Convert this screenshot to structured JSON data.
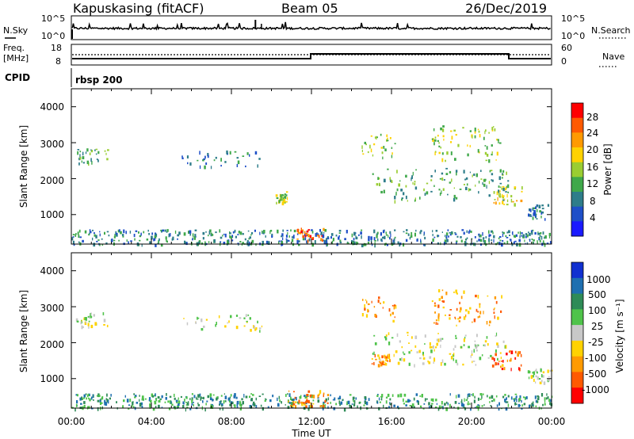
{
  "header": {
    "station": "Kapuskasing (fitACF)",
    "beam": "Beam 05",
    "date": "26/Dec/2019"
  },
  "top_panels": {
    "nsky_label": "N.Sky",
    "nsky_ticks": [
      "10^5",
      "10^0"
    ],
    "nsearch_label": "N.Search",
    "nsearch_ticks": [
      "10^5",
      "10^0"
    ],
    "freq_label": "Freq.",
    "freq_unit": "[MHz]",
    "freq_ticks": [
      "18",
      "8"
    ],
    "nave_label": "Nave",
    "nave_ticks": [
      "60",
      "0"
    ],
    "cpid_label": "CPID",
    "cpid_value": "rbsp 200"
  },
  "colors": {
    "power_scale": [
      "#1a1aff",
      "#1e4fc8",
      "#2e7d8a",
      "#3fa84a",
      "#9acd32",
      "#ffd200",
      "#ff9a00",
      "#ff5a00",
      "#ff0000"
    ],
    "velocity_scale": [
      "#1030d0",
      "#1e6fb0",
      "#2e8b57",
      "#4fc34a",
      "#c8c8c8",
      "#ffd200",
      "#ff9a00",
      "#ff5a00",
      "#ff0000"
    ]
  },
  "chart_data": [
    {
      "type": "heatmap",
      "panel": "power",
      "ylabel": "Slant Range [km]",
      "ylim": [
        180,
        4500
      ],
      "yticks": [
        "4000",
        "3000",
        "2000",
        "1000"
      ],
      "colorbar_label": "Power [dB]",
      "colorbar_ticks": [
        "28",
        "24",
        "20",
        "16",
        "12",
        "8",
        "4"
      ],
      "regions": [
        {
          "t0": 0.0,
          "t1": 24.0,
          "r0": 180,
          "r1": 600,
          "value": 8
        },
        {
          "t0": 11.2,
          "t1": 12.6,
          "r0": 300,
          "r1": 650,
          "value": 28
        },
        {
          "t0": 0.2,
          "t1": 1.8,
          "r0": 2450,
          "r1": 2850,
          "value": 10
        },
        {
          "t0": 5.5,
          "t1": 9.5,
          "r0": 2350,
          "r1": 2800,
          "value": 8
        },
        {
          "t0": 10.2,
          "t1": 10.8,
          "r0": 1350,
          "r1": 1650,
          "value": 14
        },
        {
          "t0": 14.5,
          "t1": 16.2,
          "r0": 2600,
          "r1": 3300,
          "value": 16
        },
        {
          "t0": 15.0,
          "t1": 21.8,
          "r0": 1400,
          "r1": 2300,
          "value": 10
        },
        {
          "t0": 18.0,
          "t1": 21.5,
          "r0": 2500,
          "r1": 3500,
          "value": 14
        },
        {
          "t0": 21.0,
          "t1": 22.5,
          "r0": 1300,
          "r1": 1800,
          "value": 18
        },
        {
          "t0": 22.8,
          "t1": 24.0,
          "r0": 900,
          "r1": 1300,
          "value": 8
        }
      ]
    },
    {
      "type": "heatmap",
      "panel": "velocity",
      "xlabel": "Time UT",
      "ylabel": "Slant Range [km]",
      "ylim": [
        180,
        4500
      ],
      "xticks": [
        "00:00",
        "04:00",
        "08:00",
        "12:00",
        "16:00",
        "20:00",
        "00:00"
      ],
      "yticks": [
        "4000",
        "3000",
        "2000",
        "1000"
      ],
      "colorbar_label": "Velocity [m s⁻¹]",
      "colorbar_ticks": [
        "1000",
        "500",
        "100",
        "25",
        "-25",
        "-100",
        "-500",
        "-1000"
      ],
      "regions": [
        {
          "t0": 0.0,
          "t1": 24.0,
          "r0": 180,
          "r1": 600,
          "value": 100
        },
        {
          "t0": 10.8,
          "t1": 12.8,
          "r0": 250,
          "r1": 700,
          "value": -100
        },
        {
          "t0": 0.2,
          "t1": 1.8,
          "r0": 2450,
          "r1": 2850,
          "value": 0
        },
        {
          "t0": 5.5,
          "t1": 9.5,
          "r0": 2350,
          "r1": 2800,
          "value": 0
        },
        {
          "t0": 14.5,
          "t1": 16.2,
          "r0": 2600,
          "r1": 3300,
          "value": -100
        },
        {
          "t0": 15.0,
          "t1": 16.0,
          "r0": 1400,
          "r1": 1700,
          "value": -100
        },
        {
          "t0": 15.0,
          "t1": 21.8,
          "r0": 1400,
          "r1": 2300,
          "value": 0
        },
        {
          "t0": 18.0,
          "t1": 21.5,
          "r0": 2500,
          "r1": 3500,
          "value": -100
        },
        {
          "t0": 21.0,
          "t1": 22.5,
          "r0": 1300,
          "r1": 1800,
          "value": -500
        },
        {
          "t0": 22.8,
          "t1": 24.0,
          "r0": 900,
          "r1": 1300,
          "value": 0
        }
      ]
    }
  ]
}
